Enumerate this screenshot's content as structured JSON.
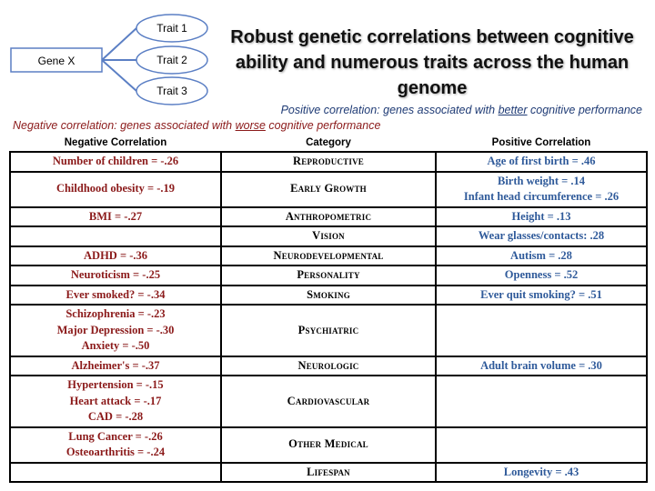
{
  "diagram": {
    "source": "Gene X",
    "targets": [
      "Trait 1",
      "Trait 2",
      "Trait 3"
    ]
  },
  "title": "Robust genetic correlations between cognitive ability and numerous traits across the human genome",
  "positive_note": {
    "before": "Positive correlation: genes associated with ",
    "emph": "better",
    "after": " cognitive performance"
  },
  "negative_note": {
    "before": "Negative correlation: genes associated with ",
    "emph": "worse",
    "after": " cognitive performance"
  },
  "table": {
    "headers": [
      "Negative Correlation",
      "Category",
      "Positive Correlation"
    ],
    "rows": [
      {
        "neg": [
          "Number of children = -.26"
        ],
        "cat": "Reproductive",
        "pos": [
          "Age of first birth = .46"
        ]
      },
      {
        "neg": [
          "Childhood obesity = -.19"
        ],
        "cat": "Early Growth",
        "pos": [
          "Birth weight = .14",
          "Infant head circumference = .26"
        ]
      },
      {
        "neg": [
          "BMI = -.27"
        ],
        "cat": "Anthropometric",
        "pos": [
          "Height = .13"
        ]
      },
      {
        "neg": [],
        "cat": "Vision",
        "pos": [
          "Wear glasses/contacts: .28"
        ]
      },
      {
        "neg": [
          "ADHD = -.36"
        ],
        "cat": "Neurodevelopmental",
        "pos": [
          "Autism = .28"
        ]
      },
      {
        "neg": [
          "Neuroticism = -.25"
        ],
        "cat": "Personality",
        "pos": [
          "Openness = .52"
        ]
      },
      {
        "neg": [
          "Ever smoked? = -.34"
        ],
        "cat": "Smoking",
        "pos": [
          "Ever quit smoking? = .51"
        ]
      },
      {
        "neg": [
          "Schizophrenia = -.23",
          "Major Depression = -.30",
          "Anxiety = -.50"
        ],
        "cat": "Psychiatric",
        "pos": []
      },
      {
        "neg": [
          "Alzheimer's = -.37"
        ],
        "cat": "Neurologic",
        "pos": [
          "Adult brain volume = .30"
        ]
      },
      {
        "neg": [
          "Hypertension = -.15",
          "Heart attack = -.17",
          "CAD = -.28"
        ],
        "cat": "Cardiovascular",
        "pos": []
      },
      {
        "neg": [
          "Lung Cancer = -.26",
          "Osteoarthritis = -.24"
        ],
        "cat": "Other Medical",
        "pos": []
      },
      {
        "neg": [],
        "cat": "Lifespan",
        "pos": [
          "Longevity = .43"
        ]
      }
    ]
  },
  "colors": {
    "negative": "#8b1a1a",
    "positive": "#2f5a9a",
    "node_stroke": "#5b7fc4"
  }
}
